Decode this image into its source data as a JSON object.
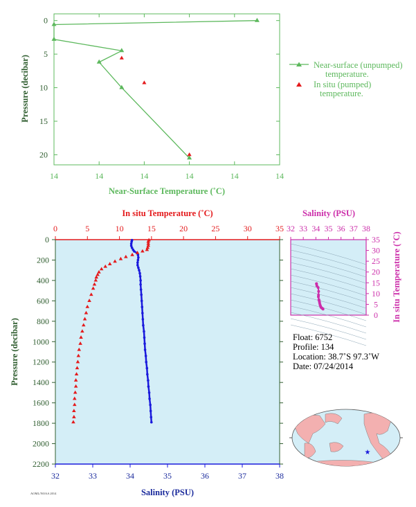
{
  "colors": {
    "green": "#5cb85c",
    "red": "#e41a1c",
    "blue": "#1a1adc",
    "magenta": "#cc2eaa",
    "darkgreen": "#2f5d2f",
    "navy": "#1a2a9c",
    "panel_bg": "#d4eef7",
    "land": "#f3b0b0",
    "ocean": "#d4eef7"
  },
  "top_chart": {
    "xlabel": "Near-Surface Temperature (˚C)",
    "ylabel": "Pressure (decibar)",
    "x_tick_labels": [
      "14",
      "14",
      "14",
      "14",
      "14",
      "14"
    ],
    "y_ticks": [
      "0",
      "5",
      "10",
      "15",
      "20"
    ],
    "legend_unpumped_1": "Near-surface (unpumped)",
    "legend_unpumped_2": "temperature.",
    "legend_pumped_1": "In situ (pumped)",
    "legend_pumped_2": "temperature."
  },
  "main_chart": {
    "top_label": "In situ Temperature (˚C)",
    "bottom_label": "Salinity (PSU)",
    "ylabel": "Pressure (decibar)",
    "temp_ticks": [
      "0",
      "5",
      "10",
      "15",
      "20",
      "25",
      "30",
      "35"
    ],
    "sal_ticks": [
      "32",
      "33",
      "34",
      "35",
      "36",
      "37",
      "38"
    ],
    "p_ticks": [
      "0",
      "200",
      "400",
      "600",
      "800",
      "1000",
      "1200",
      "1400",
      "1600",
      "1800",
      "2000",
      "2200"
    ]
  },
  "ts_chart": {
    "top_label": "Salinity (PSU)",
    "right_label": "In situ Temperature (˚C)",
    "sal_ticks": [
      "32",
      "33",
      "34",
      "35",
      "36",
      "37",
      "38"
    ],
    "temp_ticks": [
      "0",
      "5",
      "10",
      "15",
      "20",
      "25",
      "30",
      "35"
    ]
  },
  "info": {
    "float": "Float:  6752",
    "profile": "Profile:  134",
    "location": "Location:  38.7˚S  97.3˚W",
    "date": "Date:  07/24/2014"
  },
  "footer_note": "AOML/NOAA 2014",
  "chart_data": [
    {
      "type": "line",
      "title": "",
      "xlabel": "Near-Surface Temperature (˚C)",
      "ylabel": "Pressure (decibar)",
      "xlim": [
        14.0,
        14.2
      ],
      "ylim": [
        21.5,
        -1
      ],
      "series": [
        {
          "name": "Near-surface (unpumped) temperature.",
          "color": "#5cb85c",
          "points": [
            [
              14.18,
              0
            ],
            [
              14.0,
              0.6
            ],
            [
              14.0,
              2.8
            ],
            [
              14.06,
              4.5
            ],
            [
              14.04,
              6.2
            ],
            [
              14.06,
              10.0
            ],
            [
              14.12,
              20.5
            ]
          ]
        },
        {
          "name": "In situ (pumped) temperature.",
          "color": "#e41a1c",
          "points": [
            [
              14.06,
              5.6
            ],
            [
              14.08,
              9.3
            ],
            [
              14.12,
              20.0
            ]
          ]
        }
      ]
    },
    {
      "type": "line",
      "title": "",
      "ylabel": "Pressure (decibar)",
      "ylim": [
        2200,
        0
      ],
      "series": [
        {
          "name": "In situ Temperature (˚C)",
          "axis": "temperature",
          "xlim": [
            0,
            35
          ],
          "color": "#e41a1c",
          "points": [
            [
              14.6,
              5
            ],
            [
              14.5,
              20
            ],
            [
              14.5,
              40
            ],
            [
              14.5,
              60
            ],
            [
              14.4,
              80
            ],
            [
              14.3,
              100
            ],
            [
              13.6,
              115
            ],
            [
              12.8,
              130
            ],
            [
              12.0,
              150
            ],
            [
              11.0,
              170
            ],
            [
              10.2,
              190
            ],
            [
              9.3,
              215
            ],
            [
              8.5,
              240
            ],
            [
              7.8,
              265
            ],
            [
              7.2,
              290
            ],
            [
              6.8,
              320
            ],
            [
              6.6,
              345
            ],
            [
              6.4,
              370
            ],
            [
              6.3,
              400
            ],
            [
              6.1,
              440
            ],
            [
              5.9,
              480
            ],
            [
              5.6,
              540
            ],
            [
              5.3,
              600
            ],
            [
              5.0,
              660
            ],
            [
              4.8,
              720
            ],
            [
              4.6,
              780
            ],
            [
              4.4,
              840
            ],
            [
              4.2,
              900
            ],
            [
              4.0,
              960
            ],
            [
              3.9,
              1020
            ],
            [
              3.7,
              1080
            ],
            [
              3.6,
              1140
            ],
            [
              3.5,
              1200
            ],
            [
              3.4,
              1260
            ],
            [
              3.3,
              1320
            ],
            [
              3.2,
              1380
            ],
            [
              3.2,
              1440
            ],
            [
              3.1,
              1500
            ],
            [
              3.0,
              1560
            ],
            [
              3.0,
              1620
            ],
            [
              2.9,
              1680
            ],
            [
              2.9,
              1740
            ],
            [
              2.8,
              1790
            ]
          ]
        },
        {
          "name": "Salinity (PSU)",
          "axis": "salinity",
          "xlim": [
            32,
            38
          ],
          "color": "#1a1adc",
          "points": [
            [
              34.05,
              5
            ],
            [
              34.04,
              20
            ],
            [
              34.03,
              40
            ],
            [
              34.03,
              60
            ],
            [
              34.05,
              80
            ],
            [
              34.08,
              100
            ],
            [
              34.11,
              115
            ],
            [
              34.18,
              130
            ],
            [
              34.21,
              150
            ],
            [
              34.22,
              175
            ],
            [
              34.21,
              200
            ],
            [
              34.2,
              225
            ],
            [
              34.2,
              250
            ],
            [
              34.22,
              275
            ],
            [
              34.24,
              300
            ],
            [
              34.26,
              330
            ],
            [
              34.27,
              360
            ],
            [
              34.28,
              400
            ],
            [
              34.28,
              440
            ],
            [
              34.29,
              490
            ],
            [
              34.3,
              540
            ],
            [
              34.31,
              600
            ],
            [
              34.32,
              660
            ],
            [
              34.33,
              720
            ],
            [
              34.34,
              780
            ],
            [
              34.35,
              840
            ],
            [
              34.37,
              900
            ],
            [
              34.38,
              960
            ],
            [
              34.39,
              1020
            ],
            [
              34.4,
              1080
            ],
            [
              34.42,
              1140
            ],
            [
              34.43,
              1200
            ],
            [
              34.45,
              1260
            ],
            [
              34.46,
              1320
            ],
            [
              34.48,
              1380
            ],
            [
              34.49,
              1440
            ],
            [
              34.51,
              1500
            ],
            [
              34.52,
              1560
            ],
            [
              34.54,
              1620
            ],
            [
              34.55,
              1680
            ],
            [
              34.56,
              1740
            ],
            [
              34.57,
              1790
            ]
          ]
        }
      ]
    },
    {
      "type": "scatter",
      "title": "",
      "xlabel": "Salinity (PSU)",
      "ylabel": "In situ Temperature (˚C)",
      "xlim": [
        32,
        38
      ],
      "ylim": [
        0,
        35
      ],
      "series": [
        {
          "color": "#cc2eaa",
          "points": [
            [
              34.05,
              14.6
            ],
            [
              34.05,
              14.5
            ],
            [
              34.08,
              13.6
            ],
            [
              34.18,
              12.8
            ],
            [
              34.22,
              11.0
            ],
            [
              34.21,
              9.3
            ],
            [
              34.2,
              8.5
            ],
            [
              34.24,
              7.2
            ],
            [
              34.26,
              6.8
            ],
            [
              34.28,
              6.3
            ],
            [
              34.3,
              5.6
            ],
            [
              34.33,
              4.8
            ],
            [
              34.37,
              4.2
            ],
            [
              34.4,
              3.7
            ],
            [
              34.45,
              3.4
            ],
            [
              34.49,
              3.2
            ],
            [
              34.54,
              3.0
            ],
            [
              34.57,
              2.8
            ]
          ]
        }
      ]
    }
  ]
}
